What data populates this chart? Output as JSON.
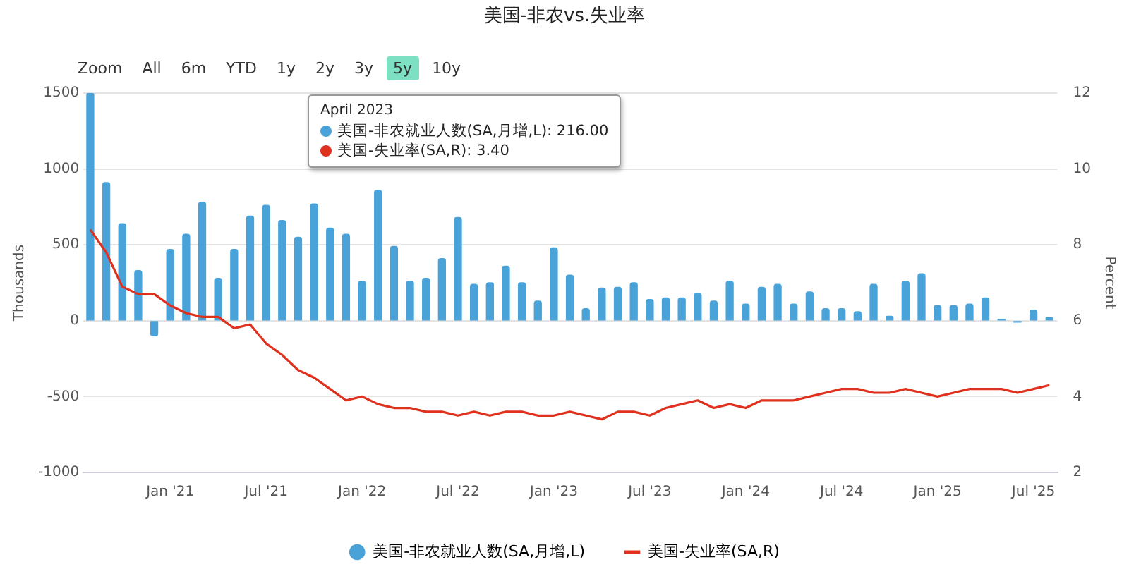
{
  "chart_data": {
    "type": "bar",
    "title": "美国-非农vs.失业率",
    "ylabel": "Thousands",
    "y2label": "Percent",
    "annotations": [
      "Zoom",
      "All",
      "6m",
      "YTD",
      "1y",
      "2y",
      "3y",
      "5y",
      "10y",
      "April 2023",
      "美国-非农就业人数(SA,月增,L): 216.00",
      "美国-失业率(SA,R): 3.40"
    ],
    "x": [
      "2020-08",
      "2020-09",
      "2020-10",
      "2020-11",
      "2020-12",
      "2021-01",
      "2021-02",
      "2021-03",
      "2021-04",
      "2021-05",
      "2021-06",
      "2021-07",
      "2021-08",
      "2021-09",
      "2021-10",
      "2021-11",
      "2021-12",
      "2022-01",
      "2022-02",
      "2022-03",
      "2022-04",
      "2022-05",
      "2022-06",
      "2022-07",
      "2022-08",
      "2022-09",
      "2022-10",
      "2022-11",
      "2022-12",
      "2023-01",
      "2023-02",
      "2023-03",
      "2023-04",
      "2023-05",
      "2023-06",
      "2023-07",
      "2023-08",
      "2023-09",
      "2023-10",
      "2023-11",
      "2023-12",
      "2024-01",
      "2024-02",
      "2024-03",
      "2024-04",
      "2024-05",
      "2024-06",
      "2024-07",
      "2024-08",
      "2024-09",
      "2024-10",
      "2024-11",
      "2024-12",
      "2025-01",
      "2025-02",
      "2025-03",
      "2025-04",
      "2025-05",
      "2025-06",
      "2025-07",
      "2025-08"
    ],
    "series": [
      {
        "name": "美国-非农就业人数(SA,月增,L)",
        "color": "#4aa3d8",
        "values": [
          1500,
          910,
          640,
          330,
          -100,
          470,
          570,
          780,
          280,
          470,
          690,
          760,
          660,
          550,
          770,
          610,
          570,
          260,
          860,
          490,
          260,
          280,
          410,
          680,
          240,
          250,
          360,
          250,
          130,
          480,
          300,
          80,
          216,
          220,
          250,
          140,
          150,
          150,
          180,
          130,
          260,
          110,
          220,
          240,
          110,
          190,
          80,
          80,
          60,
          240,
          30,
          260,
          310,
          100,
          100,
          110,
          150,
          10,
          -10,
          70,
          20
        ]
      },
      {
        "name": "美国-失业率(SA,R)",
        "type": "line",
        "axis": "y2",
        "color": "#e0301e",
        "values": [
          8.4,
          7.8,
          6.9,
          6.7,
          6.7,
          6.4,
          6.2,
          6.1,
          6.1,
          5.8,
          5.9,
          5.4,
          5.1,
          4.7,
          4.5,
          4.2,
          3.9,
          4.0,
          3.8,
          3.7,
          3.7,
          3.6,
          3.6,
          3.5,
          3.6,
          3.5,
          3.6,
          3.6,
          3.5,
          3.5,
          3.6,
          3.5,
          3.4,
          3.6,
          3.6,
          3.5,
          3.7,
          3.8,
          3.9,
          3.7,
          3.8,
          3.7,
          3.9,
          3.9,
          3.9,
          4.0,
          4.1,
          4.2,
          4.2,
          4.1,
          4.1,
          4.2,
          4.1,
          4.0,
          4.1,
          4.2,
          4.2,
          4.2,
          4.1,
          4.2,
          4.3
        ]
      }
    ],
    "xlim": [
      "2020-07-18",
      "2025-08-16"
    ],
    "xticks": [
      {
        "value": "2021-01",
        "label": "Jan '21"
      },
      {
        "value": "2021-07",
        "label": "Jul '21"
      },
      {
        "value": "2022-01",
        "label": "Jan '22"
      },
      {
        "value": "2022-07",
        "label": "Jul '22"
      },
      {
        "value": "2023-01",
        "label": "Jan '23"
      },
      {
        "value": "2023-07",
        "label": "Jul '23"
      },
      {
        "value": "2024-01",
        "label": "Jan '24"
      },
      {
        "value": "2024-07",
        "label": "Jul '24"
      },
      {
        "value": "2025-01",
        "label": "Jan '25"
      },
      {
        "value": "2025-07",
        "label": "Jul '25"
      }
    ],
    "ylim": [
      -1000,
      1500
    ],
    "yticks": [
      -1000,
      -500,
      0,
      500,
      1000,
      1500
    ],
    "y2lim": [
      2,
      12
    ],
    "y2ticks": [
      2,
      4,
      6,
      8,
      10,
      12
    ],
    "grid": "y",
    "legend": "bottom",
    "marker": "none",
    "line_style": "solid"
  }
}
